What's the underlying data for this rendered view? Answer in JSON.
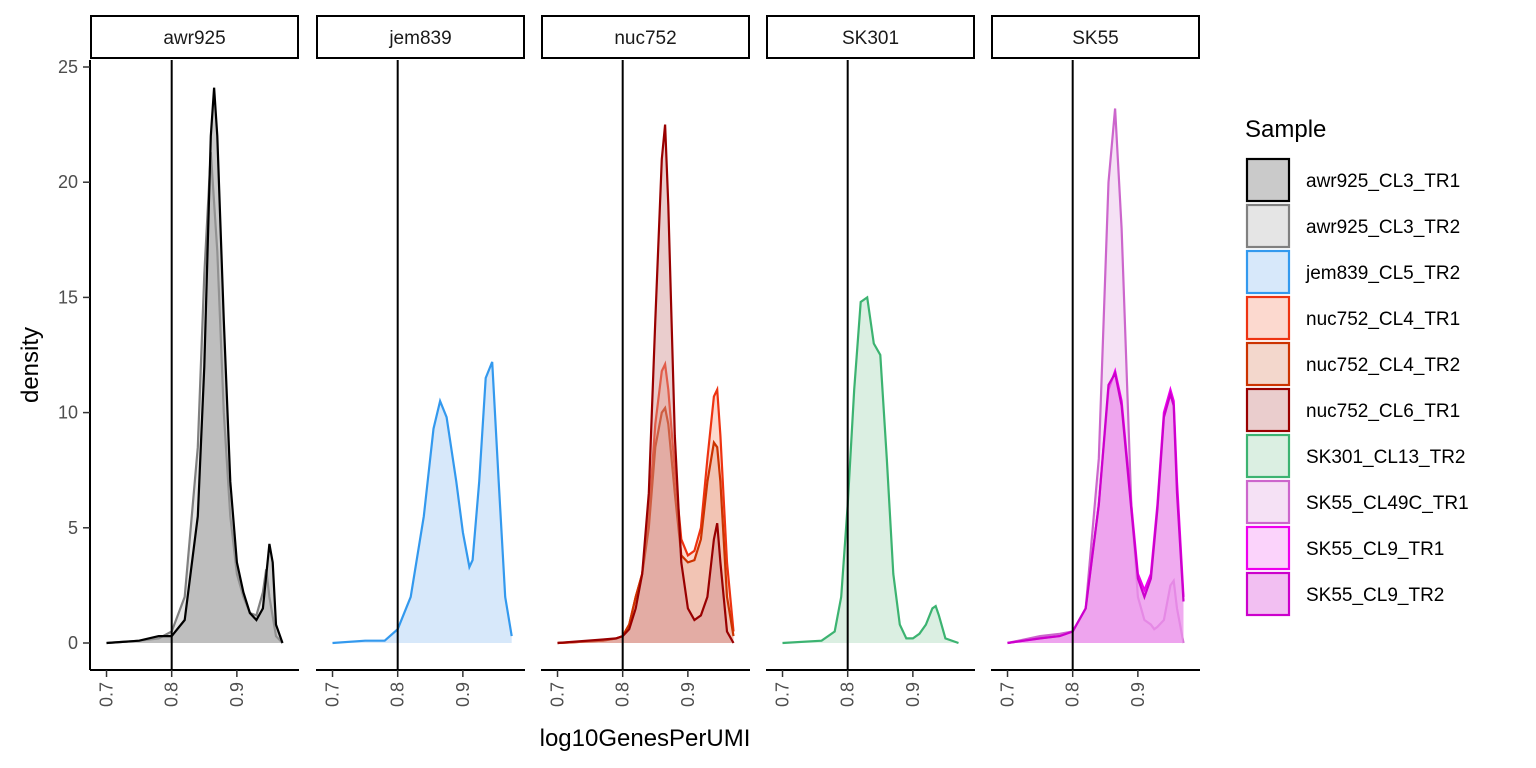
{
  "chart_data": {
    "type": "area",
    "xlabel": "log10GenesPerUMI",
    "ylabel": "density",
    "xlim": [
      0.69,
      0.98
    ],
    "ylim": [
      0,
      25
    ],
    "x_ticks": [
      0.7,
      0.8,
      0.9
    ],
    "x_tick_labels": [
      "0.7",
      "0.8",
      "0.9"
    ],
    "y_ticks": [
      0,
      5,
      10,
      15,
      20,
      25
    ],
    "y_tick_labels": [
      "0",
      "5",
      "10",
      "15",
      "20",
      "25"
    ],
    "vline_x": 0.8,
    "grid": false,
    "legend_title": "Sample",
    "legend_position": "right",
    "facets": [
      {
        "name": "awr925",
        "samples": [
          "awr925_CL3_TR2",
          "awr925_CL3_TR1"
        ]
      },
      {
        "name": "jem839",
        "samples": [
          "jem839_CL5_TR2"
        ]
      },
      {
        "name": "nuc752",
        "samples": [
          "nuc752_CL4_TR1",
          "nuc752_CL4_TR2",
          "nuc752_CL6_TR1"
        ]
      },
      {
        "name": "SK301",
        "samples": [
          "SK301_CL13_TR2"
        ]
      },
      {
        "name": "SK55",
        "samples": [
          "SK55_CL49C_TR1",
          "SK55_CL9_TR1",
          "SK55_CL9_TR2"
        ]
      }
    ],
    "series": [
      {
        "name": "awr925_CL3_TR1",
        "color": "#000000",
        "fill": "#9e9e9e",
        "fill_opacity": 0.55,
        "x": [
          0.7,
          0.75,
          0.78,
          0.8,
          0.82,
          0.84,
          0.85,
          0.86,
          0.865,
          0.87,
          0.88,
          0.89,
          0.9,
          0.91,
          0.92,
          0.93,
          0.94,
          0.95,
          0.955,
          0.96,
          0.97
        ],
        "y": [
          0,
          0.1,
          0.3,
          0.3,
          1.0,
          5.5,
          12,
          22,
          24.1,
          22,
          14,
          7,
          3.5,
          2.2,
          1.3,
          1.0,
          1.5,
          4.3,
          3.5,
          0.8,
          0
        ]
      },
      {
        "name": "awr925_CL3_TR2",
        "color": "#808080",
        "fill": "#cccccc",
        "fill_opacity": 0.5,
        "x": [
          0.7,
          0.75,
          0.78,
          0.8,
          0.82,
          0.84,
          0.85,
          0.86,
          0.87,
          0.88,
          0.89,
          0.9,
          0.91,
          0.92,
          0.93,
          0.94,
          0.945,
          0.95,
          0.96,
          0.97
        ],
        "y": [
          0,
          0.1,
          0.2,
          0.5,
          2.0,
          8.5,
          16,
          21.3,
          17,
          10,
          5.5,
          3.0,
          2.0,
          1.3,
          1.2,
          2.2,
          3.2,
          2.0,
          0.3,
          0
        ]
      },
      {
        "name": "jem839_CL5_TR2",
        "color": "#3399ee",
        "fill": "#bcd9f7",
        "fill_opacity": 0.6,
        "x": [
          0.7,
          0.75,
          0.78,
          0.8,
          0.82,
          0.84,
          0.855,
          0.865,
          0.875,
          0.89,
          0.9,
          0.91,
          0.915,
          0.925,
          0.935,
          0.945,
          0.955,
          0.965,
          0.975
        ],
        "y": [
          0,
          0.1,
          0.1,
          0.6,
          2.0,
          5.5,
          9.3,
          10.5,
          9.8,
          7.0,
          4.8,
          3.3,
          3.6,
          7.0,
          11.5,
          12.2,
          7.0,
          2.0,
          0.3
        ]
      },
      {
        "name": "nuc752_CL4_TR1",
        "color": "#ee3311",
        "fill": "#f9b9a8",
        "fill_opacity": 0.55,
        "x": [
          0.7,
          0.77,
          0.79,
          0.8,
          0.81,
          0.82,
          0.83,
          0.84,
          0.85,
          0.86,
          0.865,
          0.87,
          0.88,
          0.89,
          0.9,
          0.91,
          0.92,
          0.93,
          0.94,
          0.945,
          0.95,
          0.96,
          0.97
        ],
        "y": [
          0,
          0.1,
          0.2,
          0.3,
          0.8,
          2.0,
          3.0,
          5.5,
          9.5,
          11.8,
          12.1,
          11.0,
          7.5,
          4.5,
          3.8,
          4.0,
          5.0,
          8.0,
          10.7,
          11.0,
          9.0,
          3.5,
          0.5
        ]
      },
      {
        "name": "nuc752_CL4_TR2",
        "color": "#cc3300",
        "fill": "#e8b09a",
        "fill_opacity": 0.5,
        "x": [
          0.7,
          0.77,
          0.79,
          0.8,
          0.81,
          0.82,
          0.83,
          0.84,
          0.85,
          0.86,
          0.865,
          0.87,
          0.88,
          0.89,
          0.9,
          0.91,
          0.92,
          0.93,
          0.94,
          0.945,
          0.95,
          0.96,
          0.97
        ],
        "y": [
          0,
          0.1,
          0.2,
          0.3,
          0.8,
          2.0,
          3.0,
          5.0,
          8.5,
          10.0,
          10.2,
          9.5,
          6.5,
          3.8,
          3.5,
          3.6,
          4.5,
          7.0,
          8.7,
          8.5,
          7.0,
          2.0,
          0.3
        ]
      },
      {
        "name": "nuc752_CL6_TR1",
        "color": "#990000",
        "fill": "#d09090",
        "fill_opacity": 0.45,
        "x": [
          0.7,
          0.77,
          0.79,
          0.8,
          0.81,
          0.82,
          0.83,
          0.84,
          0.85,
          0.86,
          0.865,
          0.87,
          0.88,
          0.89,
          0.9,
          0.91,
          0.92,
          0.93,
          0.94,
          0.945,
          0.95,
          0.96,
          0.97
        ],
        "y": [
          0,
          0.15,
          0.2,
          0.3,
          0.6,
          1.5,
          3.0,
          6.5,
          14.0,
          21.0,
          22.5,
          19.0,
          9.0,
          3.5,
          1.5,
          1.0,
          1.2,
          2.0,
          4.5,
          5.2,
          3.5,
          0.5,
          0
        ]
      },
      {
        "name": "SK301_CL13_TR2",
        "color": "#3cb371",
        "fill": "#cce8d6",
        "fill_opacity": 0.7,
        "x": [
          0.7,
          0.76,
          0.78,
          0.79,
          0.8,
          0.81,
          0.82,
          0.83,
          0.84,
          0.85,
          0.86,
          0.87,
          0.88,
          0.89,
          0.9,
          0.91,
          0.92,
          0.93,
          0.935,
          0.94,
          0.95,
          0.97
        ],
        "y": [
          0,
          0.1,
          0.5,
          2.0,
          6.0,
          11.0,
          14.8,
          15.0,
          13.0,
          12.5,
          8.0,
          3.0,
          0.8,
          0.2,
          0.2,
          0.4,
          0.8,
          1.5,
          1.6,
          1.2,
          0.2,
          0
        ]
      },
      {
        "name": "SK55_CL49C_TR1",
        "color": "#cc66cc",
        "fill": "#ecc8ec",
        "fill_opacity": 0.55,
        "x": [
          0.7,
          0.75,
          0.78,
          0.8,
          0.82,
          0.84,
          0.855,
          0.865,
          0.875,
          0.89,
          0.9,
          0.91,
          0.92,
          0.925,
          0.93,
          0.94,
          0.95,
          0.955,
          0.96,
          0.97
        ],
        "y": [
          0,
          0.3,
          0.4,
          0.5,
          1.5,
          8.0,
          20.0,
          23.2,
          18.0,
          6.0,
          2.0,
          1.0,
          0.8,
          0.6,
          0.7,
          1.0,
          2.5,
          2.7,
          1.5,
          0
        ]
      },
      {
        "name": "SK55_CL9_TR1",
        "color": "#ee00ee",
        "fill": "#f7a8f7",
        "fill_opacity": 0.5,
        "x": [
          0.7,
          0.75,
          0.78,
          0.8,
          0.82,
          0.84,
          0.855,
          0.865,
          0.875,
          0.89,
          0.9,
          0.91,
          0.92,
          0.93,
          0.94,
          0.95,
          0.955,
          0.96,
          0.97
        ],
        "y": [
          0,
          0.2,
          0.3,
          0.5,
          1.5,
          6.0,
          11.0,
          11.8,
          10.5,
          6.0,
          3.0,
          2.3,
          3.0,
          6.0,
          10.0,
          11.0,
          10.5,
          7.0,
          2.0
        ]
      },
      {
        "name": "SK55_CL9_TR2",
        "color": "#cc00cc",
        "fill": "#e88ae8",
        "fill_opacity": 0.55,
        "x": [
          0.7,
          0.75,
          0.78,
          0.8,
          0.82,
          0.84,
          0.855,
          0.865,
          0.875,
          0.89,
          0.9,
          0.91,
          0.92,
          0.93,
          0.94,
          0.95,
          0.955,
          0.96,
          0.97
        ],
        "y": [
          0,
          0.2,
          0.3,
          0.5,
          1.5,
          6.0,
          11.2,
          11.7,
          10.3,
          5.8,
          2.8,
          2.0,
          2.8,
          5.8,
          9.8,
          10.8,
          10.3,
          6.5,
          1.8
        ]
      }
    ]
  }
}
